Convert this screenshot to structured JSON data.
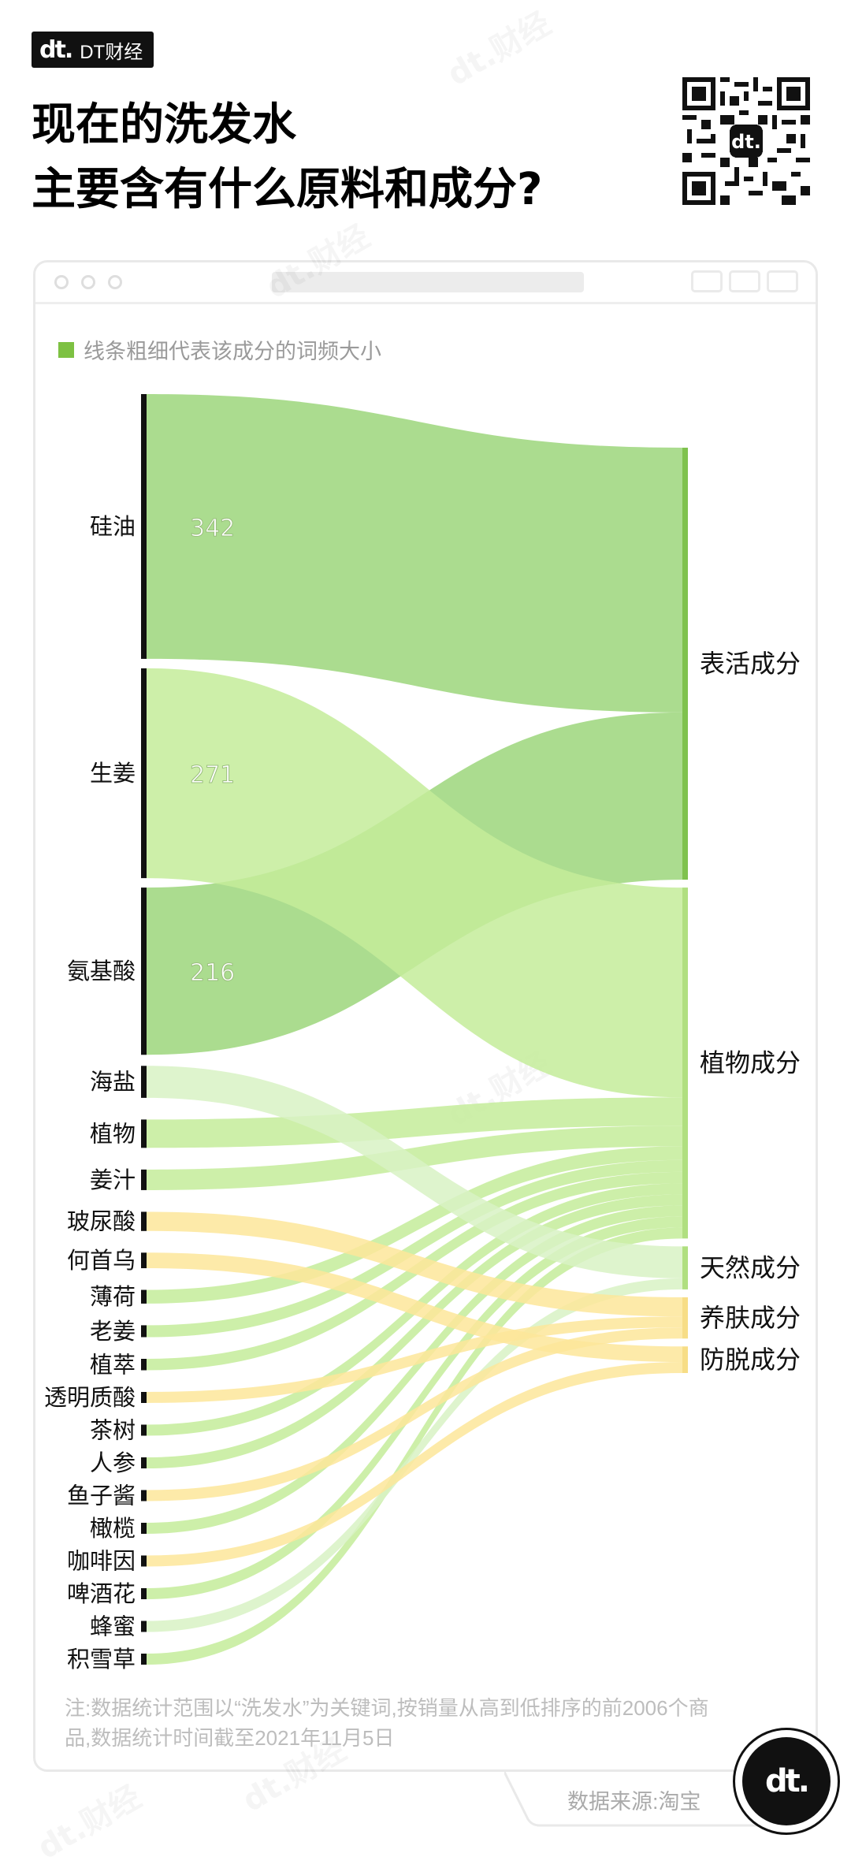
{
  "brand": {
    "mark": "dt.",
    "name": "DT财经"
  },
  "title": {
    "line1": "现在的洗发水",
    "line2": "主要含有什么原料和成分?"
  },
  "legend": {
    "text": "线条粗细代表该成分的词频大小",
    "color": "#7dc142"
  },
  "note": "注:数据统计范围以“洗发水”为关键词,按销量从高到低排序的前2006个商品,数据统计时间截至2021年11月5日",
  "source": "数据来源:淘宝",
  "badge_mark": "dt.",
  "colors": {
    "green_dark": "#8fd06a",
    "green_light": "#c4ec9a",
    "green_pale": "#d8f2c4",
    "yellow": "#fde69a",
    "target_bar": "#b0df80"
  },
  "chart_data": {
    "type": "sankey",
    "legend": "线条粗细代表该成分的词频大小",
    "sources": [
      {
        "name": "硅油",
        "value": 342,
        "label": "342",
        "target": "表活成分",
        "color": "green_dark"
      },
      {
        "name": "生姜",
        "value": 271,
        "label": "271",
        "target": "植物成分",
        "color": "green_light"
      },
      {
        "name": "氨基酸",
        "value": 216,
        "label": "216",
        "target": "表活成分",
        "color": "green_dark"
      },
      {
        "name": "海盐",
        "value": 70,
        "target": "天然成分",
        "color": "green_pale"
      },
      {
        "name": "植物",
        "value": 62,
        "target": "植物成分",
        "color": "green_light"
      },
      {
        "name": "姜汁",
        "value": 45,
        "target": "植物成分",
        "color": "green_light"
      },
      {
        "name": "玻尿酸",
        "value": 42,
        "target": "养肤成分",
        "color": "yellow"
      },
      {
        "name": "何首乌",
        "value": 34,
        "target": "防脱成分",
        "color": "yellow"
      },
      {
        "name": "薄荷",
        "value": 30,
        "target": "植物成分",
        "color": "green_light"
      },
      {
        "name": "老姜",
        "value": 26,
        "target": "植物成分",
        "color": "green_light"
      },
      {
        "name": "植萃",
        "value": 25,
        "target": "植物成分",
        "color": "green_light"
      },
      {
        "name": "透明质酸",
        "value": 22,
        "target": "养肤成分",
        "color": "yellow"
      },
      {
        "name": "茶树",
        "value": 20,
        "target": "植物成分",
        "color": "green_light"
      },
      {
        "name": "人参",
        "value": 17,
        "target": "植物成分",
        "color": "green_light"
      },
      {
        "name": "鱼子酱",
        "value": 15,
        "target": "养肤成分",
        "color": "yellow"
      },
      {
        "name": "橄榄",
        "value": 14,
        "target": "植物成分",
        "color": "green_light"
      },
      {
        "name": "咖啡因",
        "value": 11,
        "target": "防脱成分",
        "color": "yellow"
      },
      {
        "name": "啤酒花",
        "value": 9,
        "target": "植物成分",
        "color": "green_light"
      },
      {
        "name": "蜂蜜",
        "value": 8,
        "target": "天然成分",
        "color": "green_pale"
      },
      {
        "name": "积雪草",
        "value": 8,
        "target": "植物成分",
        "color": "green_light"
      }
    ],
    "targets": [
      "表活成分",
      "植物成分",
      "天然成分",
      "养肤成分",
      "防脱成分"
    ]
  }
}
